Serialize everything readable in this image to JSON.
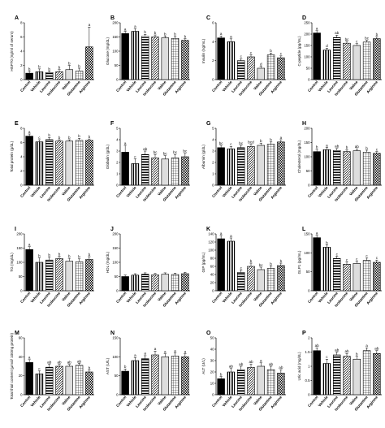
{
  "styles": {
    "ink": "#000000",
    "background": "#ffffff",
    "fills": [
      "solid-black",
      "vertical-stripes",
      "horizontal-stripes",
      "diagonal-stripes",
      "light-grey",
      "grid-checker",
      "dense-checker"
    ]
  },
  "chart_data": [
    {
      "type": "bar",
      "panel": "A",
      "ylabel": "HSP70 (ng/ml of serum)",
      "ylim": [
        0,
        8
      ],
      "yticks": [
        0,
        2,
        4,
        6,
        8
      ],
      "categories": [
        "Control",
        "Vehicle",
        "Leucine",
        "Isoleucine",
        "Valine",
        "Glutamine",
        "Arginine"
      ],
      "values": [
        0.9,
        1.1,
        1.0,
        1.1,
        1.4,
        1.2,
        4.6
      ],
      "errors": [
        0.3,
        0.4,
        0.2,
        0.3,
        0.6,
        0.4,
        2.8
      ],
      "significance": [
        "b",
        "b",
        "b",
        "b",
        "b",
        "b",
        "a"
      ]
    },
    {
      "type": "bar",
      "panel": "B",
      "ylabel": "Glucose (mg/dL)",
      "ylim": [
        0,
        200
      ],
      "yticks": [
        0,
        50,
        100,
        150,
        200
      ],
      "categories": [
        "Control",
        "Vehicle",
        "Leucine",
        "Isoleucine",
        "Valine",
        "Glutamine",
        "Arginine"
      ],
      "values": [
        162,
        170,
        152,
        150,
        147,
        145,
        138
      ],
      "errors": [
        8,
        9,
        7,
        7,
        6,
        7,
        6
      ],
      "significance": [
        "a",
        "a",
        "b",
        "b",
        "b",
        "b",
        "b"
      ]
    },
    {
      "type": "bar",
      "panel": "C",
      "ylabel": "Insulin (ng/mL)",
      "ylim": [
        0,
        6
      ],
      "yticks": [
        0,
        2,
        4,
        6
      ],
      "categories": [
        "Control",
        "Vehicle",
        "Leucine",
        "Isoleucine",
        "Valine",
        "Glutamine",
        "Arginine"
      ],
      "values": [
        4.4,
        4.0,
        2.0,
        2.4,
        1.2,
        2.6,
        2.3
      ],
      "errors": [
        0.2,
        0.3,
        0.2,
        0.2,
        0.2,
        0.2,
        0.2
      ],
      "significance": [
        "a",
        "a",
        "c",
        "c",
        "d",
        "b",
        "c"
      ]
    },
    {
      "type": "bar",
      "panel": "D",
      "ylabel": "C-peptide (pg/mL)",
      "ylim": [
        0,
        250
      ],
      "yticks": [
        0,
        50,
        100,
        150,
        200,
        250
      ],
      "categories": [
        "Control",
        "Vehicle",
        "Leucine",
        "Isoleucine",
        "Valine",
        "Glutamine",
        "Arginine"
      ],
      "values": [
        205,
        130,
        185,
        160,
        150,
        165,
        180
      ],
      "errors": [
        10,
        8,
        10,
        8,
        8,
        8,
        9
      ],
      "significance": [
        "a",
        "d",
        "ab",
        "bc",
        "c",
        "bc",
        "b"
      ]
    },
    {
      "type": "bar",
      "panel": "E",
      "ylabel": "Total protein (g/dL)",
      "ylim": [
        0,
        8
      ],
      "yticks": [
        0,
        2,
        4,
        6,
        8
      ],
      "categories": [
        "Control",
        "Vehicle",
        "Leucine",
        "Isoleucine",
        "Valine",
        "Glutamine",
        "Arginine"
      ],
      "values": [
        6.9,
        6.1,
        6.4,
        6.2,
        6.2,
        6.3,
        6.3
      ],
      "errors": [
        0.3,
        0.3,
        0.3,
        0.2,
        0.2,
        0.3,
        0.2
      ],
      "significance": [
        "a",
        "c",
        "b",
        "b",
        "b",
        "b",
        "b"
      ]
    },
    {
      "type": "bar",
      "panel": "F",
      "ylabel": "Globulin (g/dL)",
      "ylim": [
        0,
        5
      ],
      "yticks": [
        0,
        1,
        2,
        3,
        4,
        5
      ],
      "categories": [
        "Control",
        "Vehicle",
        "Leucine",
        "Isoleucine",
        "Valine",
        "Glutamine",
        "Arginine"
      ],
      "values": [
        2.9,
        1.9,
        2.7,
        2.4,
        2.3,
        2.4,
        2.5
      ],
      "errors": [
        0.6,
        0.4,
        0.3,
        0.3,
        0.3,
        0.3,
        0.3
      ],
      "significance": [
        "a",
        "c",
        "ab",
        "bc",
        "bc",
        "bc",
        "bc"
      ]
    },
    {
      "type": "bar",
      "panel": "G",
      "ylabel": "Albumin (g/dL)",
      "ylim": [
        0,
        5
      ],
      "yticks": [
        0,
        1,
        2,
        3,
        4,
        5
      ],
      "categories": [
        "Control",
        "Vehicle",
        "Leucine",
        "Isoleucine",
        "Valine",
        "Glutamine",
        "Arginine"
      ],
      "values": [
        3.3,
        3.2,
        3.3,
        3.4,
        3.5,
        3.6,
        3.8
      ],
      "errors": [
        0.2,
        0.2,
        0.2,
        0.2,
        0.2,
        0.2,
        0.2
      ],
      "significance": [
        "bc",
        "c",
        "bc",
        "bcd",
        "b",
        "b",
        "a"
      ]
    },
    {
      "type": "bar",
      "panel": "H",
      "ylabel": "Cholesterol (mg/dL)",
      "ylim": [
        0,
        200
      ],
      "yticks": [
        0,
        50,
        100,
        150,
        200
      ],
      "categories": [
        "Control",
        "Vehicle",
        "Leucine",
        "Isoleucine",
        "Valine",
        "Glutamine",
        "Arginine"
      ],
      "values": [
        118,
        125,
        122,
        118,
        121,
        116,
        112
      ],
      "errors": [
        8,
        8,
        7,
        7,
        7,
        7,
        6
      ],
      "significance": [
        "b",
        "a",
        "ab",
        "b",
        "ab",
        "b",
        "c"
      ]
    },
    {
      "type": "bar",
      "panel": "I",
      "ylabel": "TG (mg/dL)",
      "ylim": [
        0,
        200
      ],
      "yticks": [
        0,
        50,
        100,
        150,
        200
      ],
      "categories": [
        "Control",
        "Vehicle",
        "Leucine",
        "Isoleucine",
        "Valine",
        "Glutamine",
        "Arginine"
      ],
      "values": [
        145,
        100,
        108,
        113,
        104,
        102,
        110
      ],
      "errors": [
        10,
        15,
        10,
        8,
        10,
        10,
        10
      ],
      "significance": [
        "a",
        "b",
        "b",
        "b",
        "b",
        "b",
        "b"
      ]
    },
    {
      "type": "bar",
      "panel": "J",
      "ylabel": "HDL (mg/dL)",
      "ylim": [
        0,
        200
      ],
      "yticks": [
        0,
        50,
        100,
        150,
        200
      ],
      "categories": [
        "Control",
        "Vehicle",
        "Leucine",
        "Isoleucine",
        "Valine",
        "Glutamine",
        "Arginine"
      ],
      "values": [
        50,
        55,
        58,
        56,
        58,
        57,
        60
      ],
      "errors": [
        5,
        5,
        5,
        5,
        5,
        5,
        5
      ],
      "significance": [
        "",
        "",
        "",
        "",
        "",
        "",
        ""
      ]
    },
    {
      "type": "bar",
      "panel": "K",
      "ylabel": "GIP (pg/mL)",
      "ylim": [
        0,
        140
      ],
      "yticks": [
        0,
        20,
        40,
        60,
        80,
        100,
        120,
        140
      ],
      "categories": [
        "Control",
        "Vehicle",
        "Leucine",
        "Isoleucine",
        "Valine",
        "Glutamine",
        "Arginine"
      ],
      "values": [
        128,
        122,
        45,
        60,
        52,
        55,
        62
      ],
      "errors": [
        8,
        8,
        6,
        8,
        6,
        6,
        6
      ],
      "significance": [
        "a",
        "a",
        "c",
        "b",
        "bc",
        "b",
        "b"
      ]
    },
    {
      "type": "bar",
      "panel": "L",
      "ylabel": "GLP1 (pg/mL)",
      "ylim": [
        0,
        150
      ],
      "yticks": [
        0,
        50,
        100,
        150
      ],
      "categories": [
        "Control",
        "Vehicle",
        "Leucine",
        "Isoleucine",
        "Valine",
        "Glutamine",
        "Arginine"
      ],
      "values": [
        140,
        115,
        85,
        70,
        72,
        80,
        75
      ],
      "errors": [
        6,
        6,
        6,
        6,
        6,
        6,
        6
      ],
      "significance": [
        "a",
        "b",
        "c",
        "c",
        "c",
        "c",
        "c"
      ]
    },
    {
      "type": "bar",
      "panel": "M",
      "ylabel": "Total thiol content (µmol/ 100mg protein)",
      "ylim": [
        0,
        60
      ],
      "yticks": [
        0,
        20,
        40,
        60
      ],
      "categories": [
        "Control",
        "Vehicle",
        "Leucine",
        "Isoleucine",
        "Valine",
        "Glutamine",
        "Arginine"
      ],
      "values": [
        34,
        22,
        29,
        30,
        30,
        31,
        24
      ],
      "errors": [
        3,
        3,
        3,
        2,
        2,
        2,
        2
      ],
      "significance": [
        "a",
        "c",
        "ab",
        "ab",
        "ab",
        "ab",
        "b"
      ]
    },
    {
      "type": "bar",
      "panel": "N",
      "ylabel": "AST (U/L)",
      "ylim": [
        0,
        150
      ],
      "yticks": [
        0,
        50,
        100,
        150
      ],
      "categories": [
        "Control",
        "Vehicle",
        "Leucine",
        "Isoleucine",
        "Valine",
        "Glutamine",
        "Arginine"
      ],
      "values": [
        62,
        90,
        95,
        105,
        100,
        102,
        100
      ],
      "errors": [
        6,
        8,
        8,
        10,
        8,
        8,
        8
      ],
      "significance": [
        "b",
        "a",
        "a",
        "a",
        "a",
        "a",
        "a"
      ]
    },
    {
      "type": "bar",
      "panel": "O",
      "ylabel": "ALT (U/L)",
      "ylim": [
        0,
        50
      ],
      "yticks": [
        0,
        10,
        20,
        30,
        40,
        50
      ],
      "categories": [
        "Control",
        "Vehicle",
        "Leucine",
        "Isoleucine",
        "Valine",
        "Glutamine",
        "Arginine"
      ],
      "values": [
        14,
        20,
        22,
        24,
        25,
        22,
        19
      ],
      "errors": [
        2,
        3,
        3,
        3,
        3,
        3,
        3
      ],
      "significance": [
        "b",
        "ab",
        "ab",
        "ab",
        "a",
        "ab",
        "ab"
      ]
    },
    {
      "type": "bar",
      "panel": "P",
      "ylabel": "Uric acid (mg/dL)",
      "ylim": [
        0,
        2.0
      ],
      "yticks": [
        0,
        0.5,
        1.0,
        1.5,
        2.0
      ],
      "categories": [
        "Control",
        "Vehicle",
        "Leucine",
        "Isoleucine",
        "Valine",
        "Glutamine",
        "Arginine"
      ],
      "values": [
        1.55,
        1.1,
        1.4,
        1.35,
        1.25,
        1.55,
        1.45
      ],
      "errors": [
        0.1,
        0.15,
        0.1,
        0.1,
        0.1,
        0.1,
        0.1
      ],
      "significance": [
        "ab",
        "c",
        "ab",
        "ab",
        "b",
        "a",
        "ab"
      ]
    }
  ]
}
